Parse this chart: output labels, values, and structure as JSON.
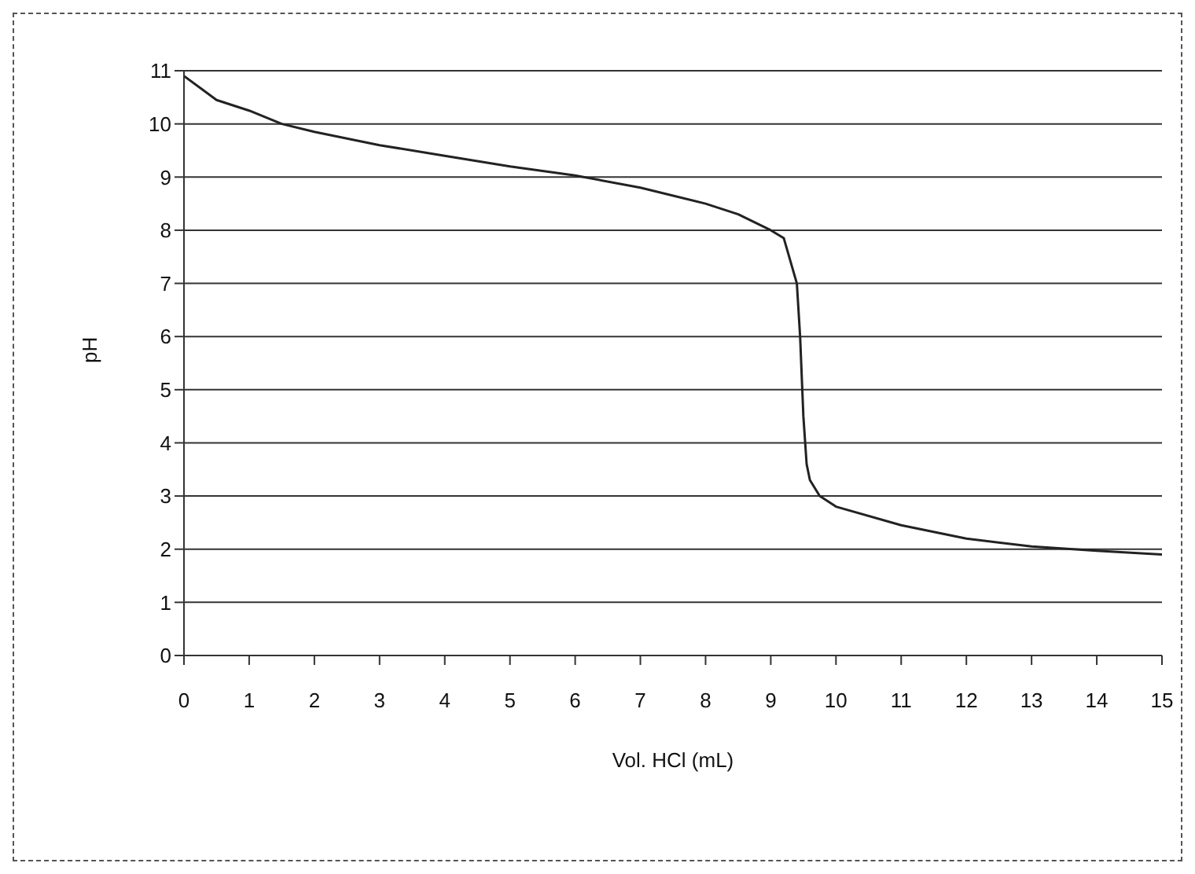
{
  "chart_data": {
    "type": "line",
    "xlabel": "Vol. HCl (mL)",
    "ylabel": "pH",
    "x": [
      0,
      0.5,
      1,
      1.5,
      2,
      3,
      4,
      5,
      6,
      7,
      8,
      8.5,
      9,
      9.2,
      9.4,
      9.45,
      9.5,
      9.55,
      9.6,
      9.75,
      10,
      11,
      12,
      13,
      14,
      15
    ],
    "series": [
      {
        "color": "#222222",
        "values": [
          10.9,
          10.45,
          10.25,
          10.0,
          9.85,
          9.6,
          9.4,
          9.2,
          9.03,
          8.8,
          8.5,
          8.3,
          8.0,
          7.85,
          7.0,
          6.0,
          4.5,
          3.6,
          3.3,
          3.0,
          2.8,
          2.45,
          2.2,
          2.05,
          1.97,
          1.9
        ]
      }
    ],
    "xlim": [
      0,
      15
    ],
    "xticks": [
      0,
      1,
      2,
      3,
      4,
      5,
      6,
      7,
      8,
      9,
      10,
      11,
      12,
      13,
      14,
      15
    ],
    "ylim": [
      0,
      11
    ],
    "yticks": [
      0,
      1,
      2,
      3,
      4,
      5,
      6,
      7,
      8,
      9,
      10,
      11
    ],
    "grid": "y",
    "legend": false,
    "marker": "none",
    "line_style": "solid"
  }
}
